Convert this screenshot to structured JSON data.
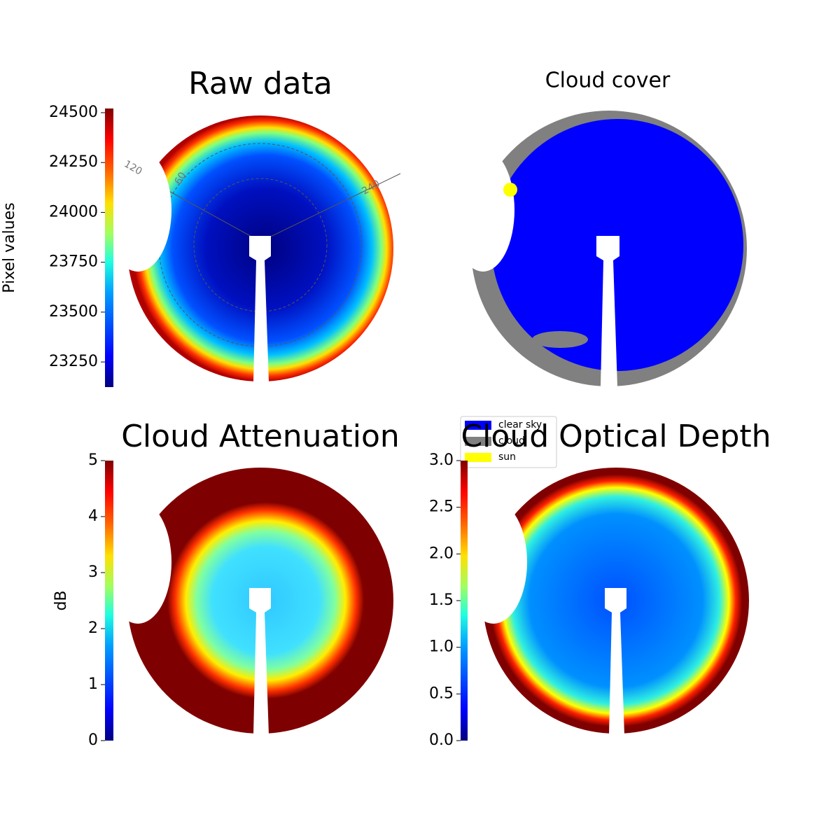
{
  "chart_data": [
    {
      "type": "image",
      "title": "Raw data",
      "ylabel": "Pixel values",
      "ylim": [
        23124,
        24521
      ],
      "yticks": [
        23250,
        23500,
        23750,
        24000,
        24250,
        24500
      ],
      "colormap": "jet",
      "annotations": [
        "120",
        "60",
        "240"
      ]
    },
    {
      "type": "image",
      "title": "Cloud cover",
      "series": [
        {
          "name": "clear sky",
          "color": "#0000ff"
        },
        {
          "name": "cloud",
          "color": "#808080"
        },
        {
          "name": "sun",
          "color": "#ffff00"
        }
      ]
    },
    {
      "type": "image",
      "title": "Cloud Attenuation",
      "ylabel": "dB",
      "ylim": [
        0,
        5
      ],
      "yticks": [
        0,
        1,
        2,
        3,
        4,
        5
      ],
      "colormap": "jet"
    },
    {
      "type": "image",
      "title": "Cloud Optical Depth",
      "ylim": [
        0,
        3
      ],
      "yticks": [
        {
          "value": 0,
          "label": "0.0"
        },
        {
          "value": 0.5,
          "label": "0.5"
        },
        {
          "value": 1,
          "label": "1.0"
        },
        {
          "value": 1.5,
          "label": "1.5"
        },
        {
          "value": 2,
          "label": "2.0"
        },
        {
          "value": 2.5,
          "label": "2.5"
        },
        {
          "value": 3,
          "label": "3.0"
        }
      ],
      "colormap": "jet"
    }
  ]
}
